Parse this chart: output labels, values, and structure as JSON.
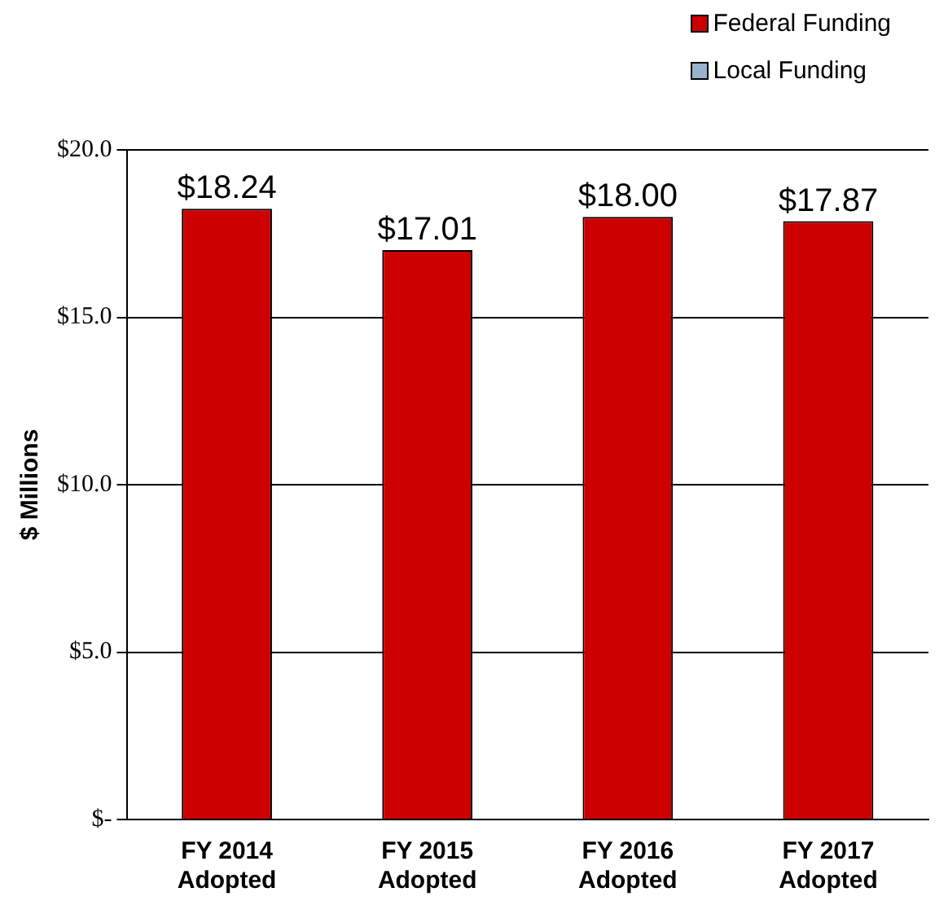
{
  "chart_data": {
    "type": "bar",
    "ylabel": "$ Millions",
    "categories": [
      "FY 2014\nAdopted",
      "FY 2015\nAdopted",
      "FY 2016\nAdopted",
      "FY 2017\nAdopted"
    ],
    "series": [
      {
        "name": "Federal Funding",
        "color": "#cc0000",
        "values": [
          18.24,
          17.01,
          18.0,
          17.87
        ],
        "value_labels": [
          "$18.24",
          "$17.01",
          "$18.00",
          "$17.87"
        ]
      },
      {
        "name": "Local Funding",
        "color": "#99b3cc",
        "values": [
          null,
          null,
          null,
          null
        ]
      }
    ],
    "stacked": true,
    "ylim": [
      0,
      20
    ],
    "yticks": [
      {
        "value": 0,
        "label": "$-"
      },
      {
        "value": 5,
        "label": "$5.0"
      },
      {
        "value": 10,
        "label": "$10.0"
      },
      {
        "value": 15,
        "label": "$15.0"
      },
      {
        "value": 20,
        "label": "$20.0"
      }
    ],
    "grid": "y",
    "legend": "top right"
  }
}
